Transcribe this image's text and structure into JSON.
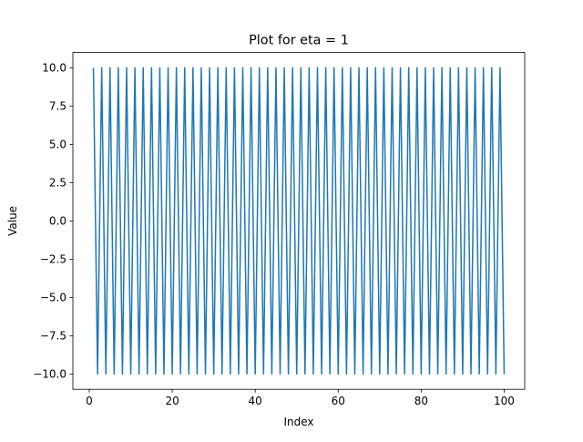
{
  "chart_data": {
    "type": "line",
    "title": "Plot for eta = 1",
    "xlabel": "Index",
    "ylabel": "Value",
    "xlim": [
      -3.95,
      104.95
    ],
    "ylim": [
      -11,
      11
    ],
    "xticks": [
      0,
      20,
      40,
      60,
      80,
      100
    ],
    "xtick_labels": [
      "0",
      "20",
      "40",
      "60",
      "80",
      "100"
    ],
    "yticks": [
      -10,
      -7.5,
      -5,
      -2.5,
      0,
      2.5,
      5,
      7.5,
      10
    ],
    "ytick_labels": [
      "−10.0",
      "−7.5",
      "−5.0",
      "−2.5",
      "0.0",
      "2.5",
      "5.0",
      "7.5",
      "10.0"
    ],
    "grid": false,
    "series": [
      {
        "color": "#1f77b4",
        "x_start": 1,
        "x_end": 100,
        "y_pattern": [
          10,
          -10
        ]
      }
    ]
  }
}
